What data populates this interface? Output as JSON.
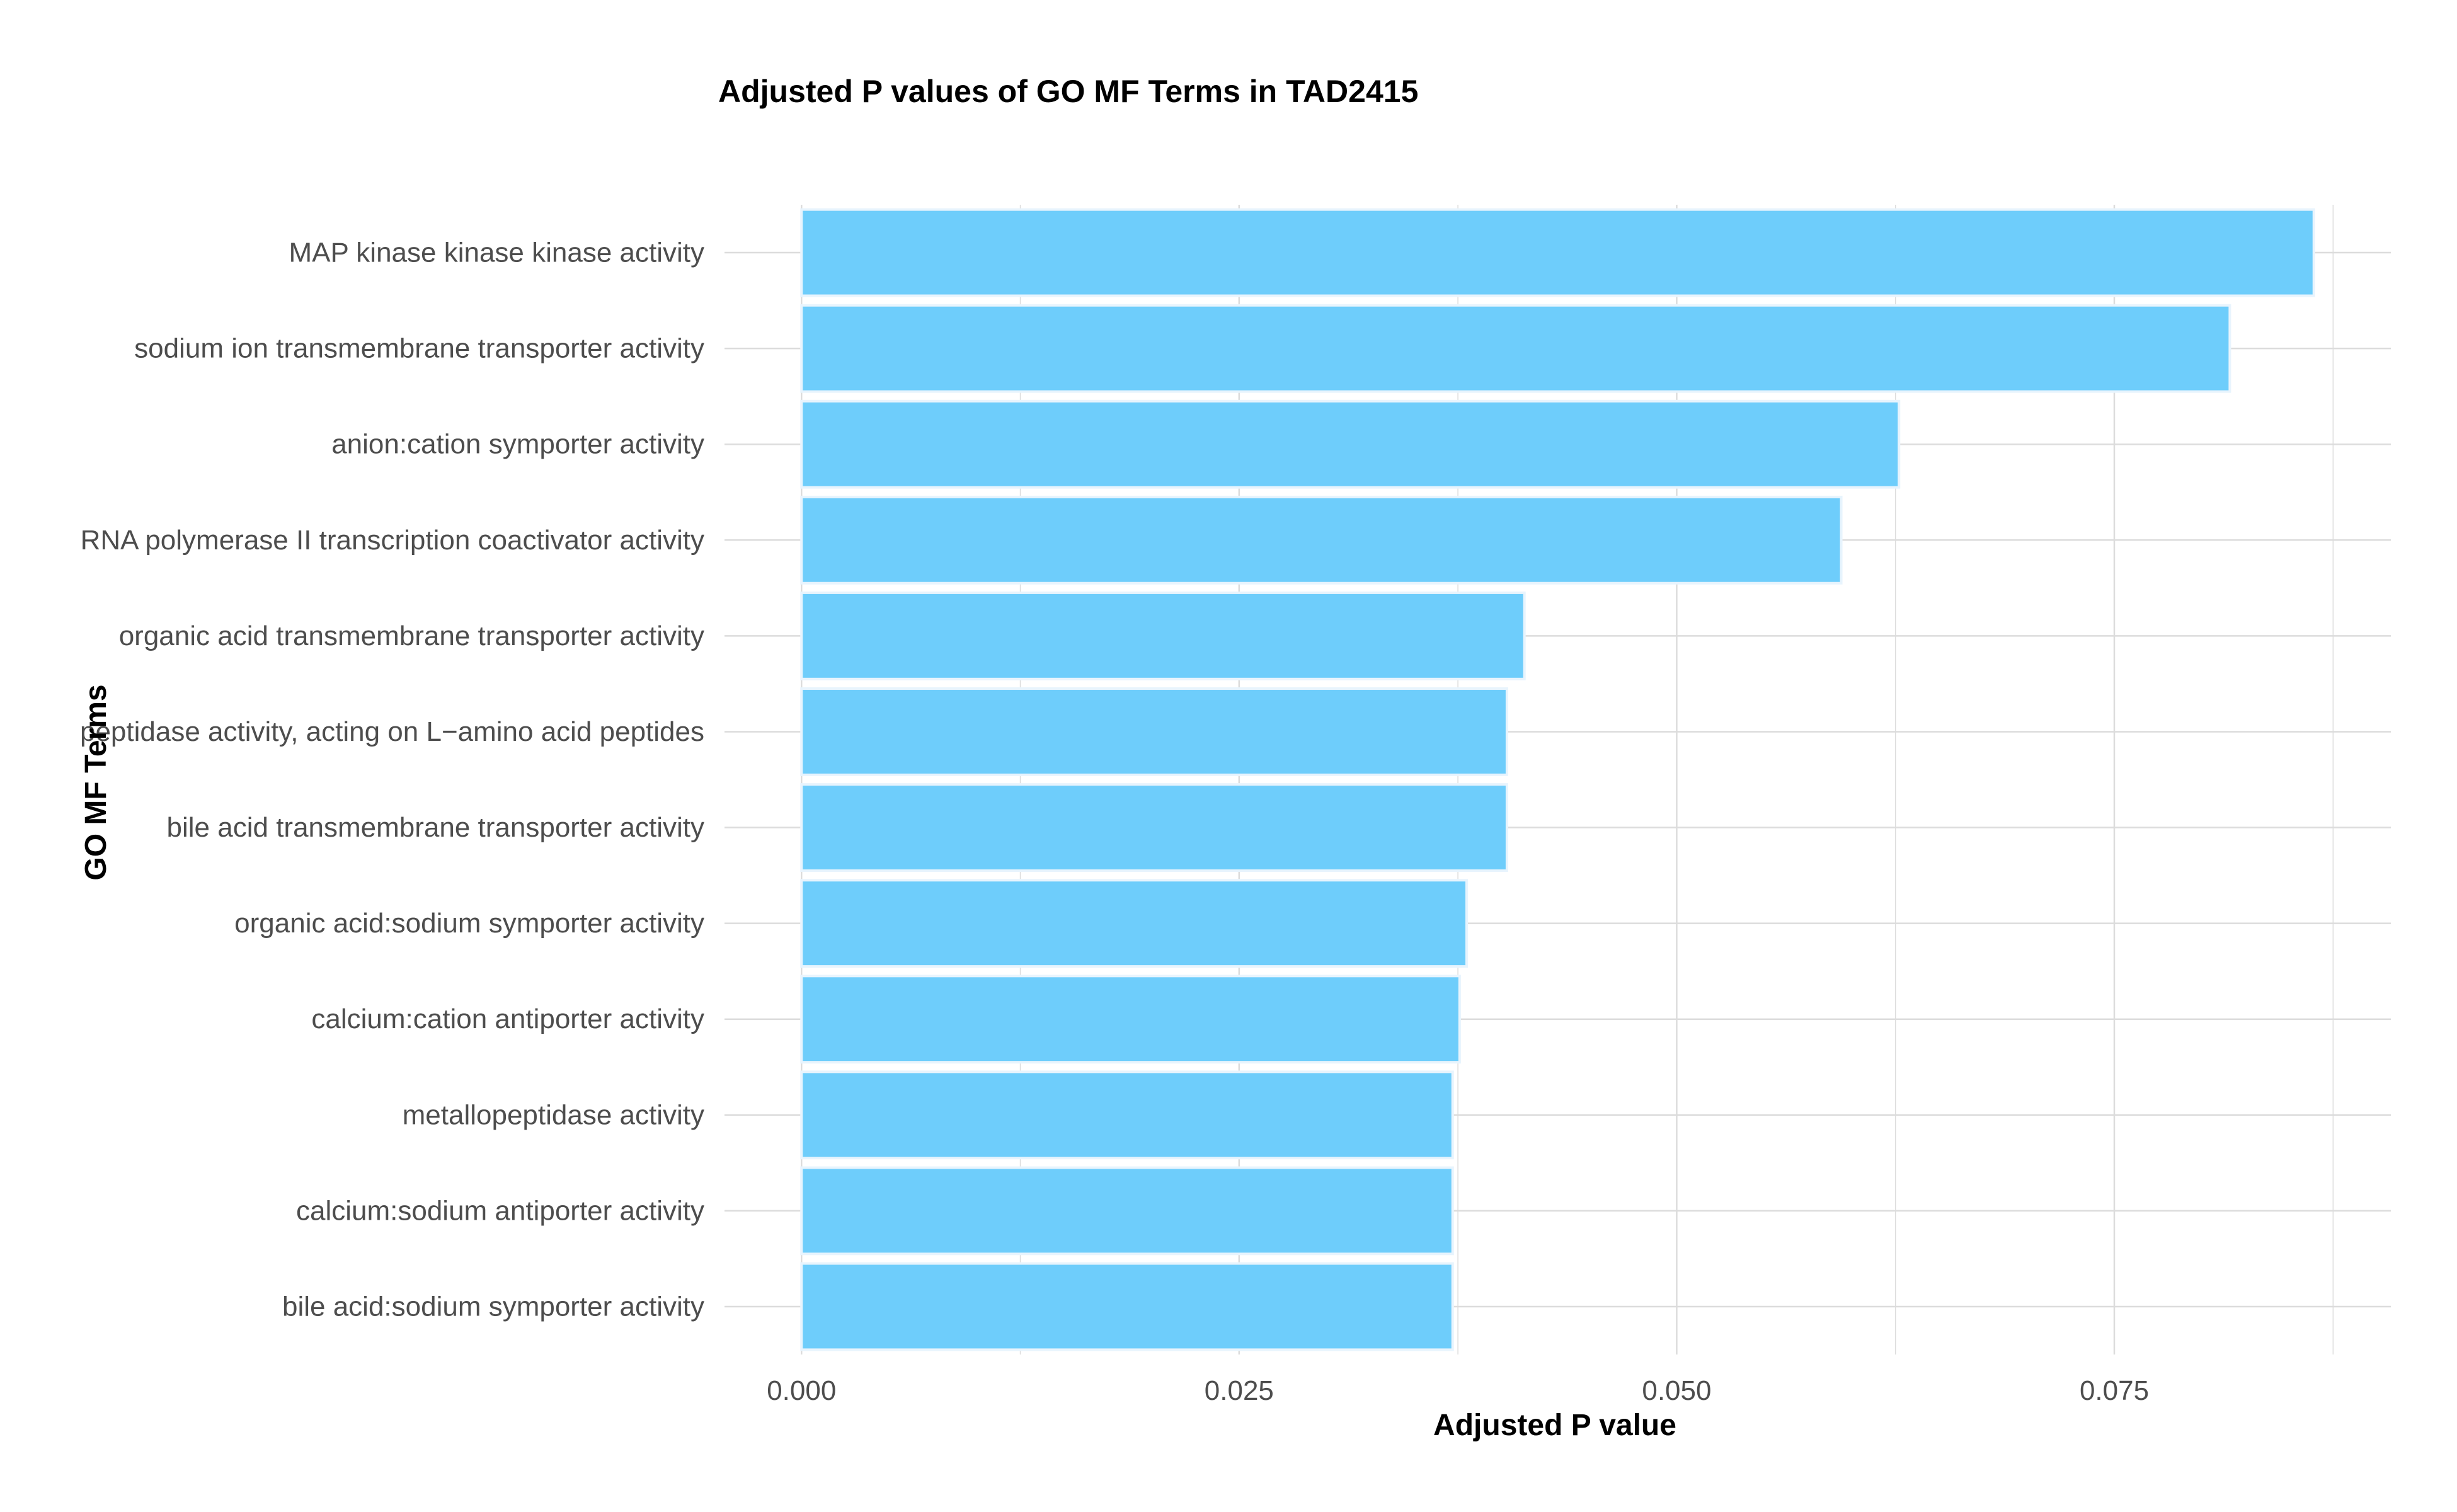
{
  "chart_data": {
    "type": "bar",
    "orientation": "horizontal",
    "title": "Adjusted P values of GO MF Terms in TAD2415",
    "xlabel": "Adjusted P value",
    "ylabel": "GO MF Terms",
    "categories": [
      "MAP kinase kinase kinase activity",
      "sodium ion transmembrane transporter activity",
      "anion:cation symporter activity",
      "RNA polymerase II transcription coactivator activity",
      "organic acid transmembrane transporter activity",
      "peptidase activity, acting on L−amino acid peptides",
      "bile acid transmembrane transporter activity",
      "organic acid:sodium symporter activity",
      "calcium:cation antiporter activity",
      "metallopeptidase activity",
      "calcium:sodium antiporter activity",
      "bile acid:sodium symporter activity"
    ],
    "values": [
      0.0864,
      0.0816,
      0.0627,
      0.0594,
      0.0413,
      0.0403,
      0.0403,
      0.038,
      0.0376,
      0.0372,
      0.0372,
      0.0372
    ],
    "x_ticks": [
      "0.000",
      "0.025",
      "0.050",
      "0.075"
    ],
    "x_tick_values": [
      0,
      0.025,
      0.05,
      0.075
    ],
    "xlim": [
      -0.0044,
      0.0908
    ],
    "grid": true,
    "bar_color": "#6ecdfb",
    "bar_outline": "#e8f4fd",
    "grid_color": "#dcdcdc"
  }
}
